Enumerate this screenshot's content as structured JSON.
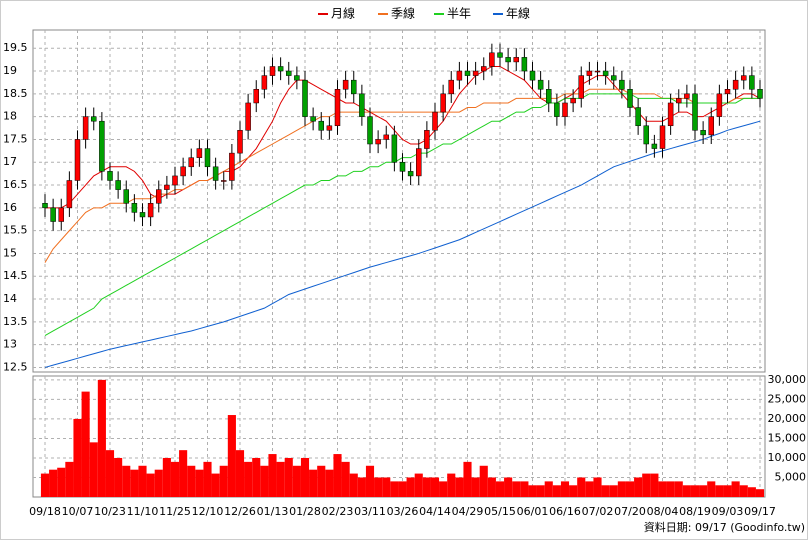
{
  "chart_data": {
    "type": "candlestick",
    "categories": [
      "09/18",
      null,
      null,
      null,
      "10/07",
      null,
      null,
      null,
      "10/23",
      null,
      null,
      null,
      "11/10",
      null,
      null,
      null,
      "11/25",
      null,
      null,
      null,
      "12/10",
      null,
      null,
      null,
      "12/26",
      null,
      null,
      null,
      "01/13",
      null,
      null,
      null,
      "01/28",
      null,
      null,
      null,
      "02/23",
      null,
      null,
      null,
      "03/11",
      null,
      null,
      null,
      "03/26",
      null,
      null,
      null,
      "04/14",
      null,
      null,
      null,
      "04/29",
      null,
      null,
      null,
      "05/15",
      null,
      null,
      null,
      "06/01",
      null,
      null,
      null,
      "06/16",
      null,
      null,
      null,
      "07/02",
      null,
      null,
      null,
      "07/20",
      null,
      null,
      null,
      "08/04",
      null,
      null,
      null,
      "08/19",
      null,
      null,
      null,
      "09/03",
      null,
      null,
      null,
      "09/17"
    ],
    "open": [
      16.1,
      16.0,
      15.7,
      16.0,
      16.6,
      17.5,
      18.0,
      17.9,
      16.8,
      16.6,
      16.4,
      16.1,
      15.9,
      15.8,
      16.1,
      16.4,
      16.5,
      16.7,
      16.9,
      17.1,
      17.3,
      16.9,
      16.6,
      16.6,
      17.2,
      17.7,
      18.3,
      18.6,
      18.9,
      19.1,
      19.0,
      18.9,
      18.8,
      18.0,
      17.9,
      17.7,
      17.8,
      18.6,
      18.8,
      18.5,
      18.0,
      17.4,
      17.5,
      17.6,
      17.0,
      16.8,
      16.7,
      17.3,
      17.7,
      18.1,
      18.5,
      18.8,
      19.0,
      18.9,
      19.0,
      19.1,
      19.4,
      19.3,
      19.2,
      19.3,
      19.0,
      18.8,
      18.6,
      18.3,
      18.0,
      18.3,
      18.4,
      18.9,
      19.0,
      19.0,
      18.9,
      18.8,
      18.6,
      18.2,
      17.8,
      17.4,
      17.3,
      17.8,
      18.3,
      18.4,
      18.5,
      17.7,
      17.6,
      18.0,
      18.5,
      18.6,
      18.8,
      18.9,
      18.6
    ],
    "high": [
      16.3,
      16.2,
      16.2,
      16.8,
      17.7,
      18.2,
      18.2,
      18.1,
      17.0,
      16.8,
      16.6,
      16.3,
      16.1,
      16.3,
      16.6,
      16.7,
      16.9,
      17.1,
      17.3,
      17.5,
      17.5,
      17.1,
      16.8,
      17.4,
      17.9,
      18.5,
      18.8,
      19.1,
      19.3,
      19.3,
      19.2,
      19.1,
      19.0,
      18.2,
      18.1,
      18.0,
      18.8,
      19.0,
      19.0,
      18.7,
      18.2,
      17.7,
      17.8,
      17.8,
      17.2,
      17.0,
      17.5,
      17.9,
      18.3,
      18.7,
      19.0,
      19.2,
      19.2,
      19.2,
      19.3,
      19.6,
      19.6,
      19.5,
      19.5,
      19.5,
      19.2,
      19.0,
      18.8,
      18.5,
      18.5,
      18.6,
      19.1,
      19.2,
      19.2,
      19.2,
      19.1,
      19.0,
      18.8,
      18.4,
      18.0,
      17.6,
      18.0,
      18.5,
      18.6,
      18.7,
      18.7,
      17.9,
      18.2,
      18.7,
      18.8,
      19.0,
      19.1,
      19.1,
      18.8
    ],
    "low": [
      15.8,
      15.5,
      15.5,
      15.8,
      16.4,
      17.3,
      17.7,
      16.6,
      16.4,
      16.2,
      15.9,
      15.7,
      15.6,
      15.6,
      15.9,
      16.2,
      16.3,
      16.5,
      16.7,
      16.9,
      16.7,
      16.4,
      16.4,
      16.4,
      17.0,
      17.5,
      18.1,
      18.4,
      18.7,
      18.8,
      18.7,
      18.6,
      17.8,
      17.7,
      17.5,
      17.5,
      17.6,
      18.4,
      18.3,
      17.8,
      17.2,
      17.2,
      17.3,
      16.8,
      16.6,
      16.5,
      16.5,
      17.1,
      17.5,
      17.9,
      18.3,
      18.6,
      18.7,
      18.7,
      18.8,
      18.9,
      19.1,
      19.0,
      19.0,
      18.8,
      18.6,
      18.4,
      18.1,
      17.8,
      17.8,
      18.1,
      18.2,
      18.7,
      18.8,
      18.7,
      18.6,
      18.4,
      18.0,
      17.6,
      17.2,
      17.1,
      17.1,
      17.6,
      18.1,
      18.2,
      17.5,
      17.4,
      17.4,
      17.8,
      18.3,
      18.4,
      18.6,
      18.4,
      18.2
    ],
    "close": [
      16.0,
      15.7,
      16.0,
      16.6,
      17.5,
      18.0,
      17.9,
      16.8,
      16.6,
      16.4,
      16.1,
      15.9,
      15.8,
      16.1,
      16.4,
      16.5,
      16.7,
      16.9,
      17.1,
      17.3,
      16.9,
      16.6,
      16.6,
      17.2,
      17.7,
      18.3,
      18.6,
      18.9,
      19.1,
      19.0,
      18.9,
      18.8,
      18.0,
      17.9,
      17.7,
      17.8,
      18.6,
      18.8,
      18.5,
      18.0,
      17.4,
      17.5,
      17.6,
      17.0,
      16.8,
      16.7,
      17.3,
      17.7,
      18.1,
      18.5,
      18.8,
      19.0,
      18.9,
      19.0,
      19.1,
      19.4,
      19.3,
      19.2,
      19.3,
      19.0,
      18.8,
      18.6,
      18.3,
      18.0,
      18.3,
      18.4,
      18.9,
      19.0,
      19.0,
      18.9,
      18.8,
      18.6,
      18.2,
      17.8,
      17.4,
      17.3,
      17.8,
      18.3,
      18.4,
      18.5,
      17.7,
      17.6,
      18.0,
      18.5,
      18.6,
      18.8,
      18.9,
      18.6,
      18.4
    ],
    "up_color": "#ff0000",
    "down_color": "#00a000",
    "series": [
      {
        "name": "月線",
        "color": "#e00000",
        "values": [
          16.0,
          16.0,
          16.0,
          16.1,
          16.3,
          16.5,
          16.7,
          16.8,
          16.9,
          16.9,
          16.9,
          16.8,
          16.6,
          16.3,
          16.2,
          16.3,
          16.3,
          16.4,
          16.5,
          16.6,
          16.6,
          16.7,
          16.8,
          16.8,
          16.9,
          17.1,
          17.3,
          17.6,
          17.9,
          18.3,
          18.6,
          18.8,
          18.8,
          18.7,
          18.6,
          18.5,
          18.4,
          18.3,
          18.3,
          18.2,
          18.1,
          18.0,
          17.9,
          17.7,
          17.5,
          17.4,
          17.4,
          17.5,
          17.7,
          17.9,
          18.2,
          18.5,
          18.7,
          18.9,
          19.0,
          19.1,
          19.1,
          19.0,
          18.9,
          18.8,
          18.6,
          18.4,
          18.3,
          18.3,
          18.4,
          18.5,
          18.7,
          18.8,
          18.9,
          18.9,
          18.7,
          18.5,
          18.3,
          18.1,
          17.9,
          17.9,
          17.9,
          18.0,
          18.1,
          18.1,
          18.0,
          18.0,
          18.1,
          18.2,
          18.3,
          18.4,
          18.5,
          18.5,
          18.4
        ]
      },
      {
        "name": "季線",
        "color": "#f07020",
        "values": [
          14.8,
          15.1,
          15.3,
          15.5,
          15.7,
          15.9,
          16.0,
          16.0,
          16.1,
          16.1,
          16.1,
          16.2,
          16.2,
          16.2,
          16.3,
          16.3,
          16.4,
          16.4,
          16.5,
          16.6,
          16.6,
          16.7,
          16.8,
          16.9,
          17.0,
          17.1,
          17.2,
          17.3,
          17.4,
          17.5,
          17.6,
          17.7,
          17.8,
          17.9,
          18.0,
          18.0,
          18.1,
          18.1,
          18.1,
          18.1,
          18.1,
          18.1,
          18.1,
          18.1,
          18.1,
          18.1,
          18.1,
          18.1,
          18.1,
          18.1,
          18.1,
          18.1,
          18.2,
          18.2,
          18.3,
          18.3,
          18.3,
          18.3,
          18.4,
          18.4,
          18.4,
          18.4,
          18.4,
          18.4,
          18.5,
          18.5,
          18.5,
          18.6,
          18.6,
          18.6,
          18.6,
          18.6,
          18.5,
          18.5,
          18.5,
          18.5,
          18.4,
          18.4,
          18.4,
          18.4,
          18.3,
          18.3,
          18.3,
          18.3,
          18.3,
          18.4,
          18.4,
          18.4,
          18.4
        ]
      },
      {
        "name": "半年",
        "color": "#20d020",
        "values": [
          13.2,
          13.3,
          13.4,
          13.5,
          13.6,
          13.7,
          13.8,
          14.0,
          14.1,
          14.2,
          14.3,
          14.4,
          14.5,
          14.6,
          14.7,
          14.8,
          14.9,
          15.0,
          15.1,
          15.2,
          15.3,
          15.4,
          15.5,
          15.6,
          15.7,
          15.8,
          15.9,
          16.0,
          16.1,
          16.2,
          16.3,
          16.4,
          16.5,
          16.5,
          16.6,
          16.6,
          16.7,
          16.7,
          16.8,
          16.8,
          16.9,
          16.9,
          17.0,
          17.0,
          17.1,
          17.1,
          17.2,
          17.2,
          17.3,
          17.4,
          17.4,
          17.5,
          17.6,
          17.7,
          17.8,
          17.9,
          17.9,
          18.0,
          18.1,
          18.1,
          18.2,
          18.2,
          18.3,
          18.3,
          18.4,
          18.4,
          18.4,
          18.5,
          18.5,
          18.5,
          18.5,
          18.5,
          18.5,
          18.4,
          18.4,
          18.4,
          18.4,
          18.4,
          18.3,
          18.3,
          18.3,
          18.3,
          18.3,
          18.3,
          18.3,
          18.3,
          18.4,
          18.4,
          18.4
        ]
      },
      {
        "name": "年線",
        "color": "#1060d0",
        "values": [
          12.5,
          12.55,
          12.6,
          12.65,
          12.7,
          12.75,
          12.8,
          12.85,
          12.9,
          12.94,
          12.98,
          13.02,
          13.06,
          13.1,
          13.14,
          13.18,
          13.22,
          13.26,
          13.3,
          13.35,
          13.4,
          13.45,
          13.5,
          13.56,
          13.62,
          13.68,
          13.74,
          13.8,
          13.9,
          14.0,
          14.1,
          14.16,
          14.22,
          14.28,
          14.34,
          14.4,
          14.46,
          14.52,
          14.58,
          14.64,
          14.7,
          14.75,
          14.8,
          14.85,
          14.9,
          14.95,
          15.0,
          15.06,
          15.12,
          15.18,
          15.24,
          15.3,
          15.38,
          15.46,
          15.54,
          15.62,
          15.7,
          15.78,
          15.86,
          15.94,
          16.02,
          16.1,
          16.18,
          16.26,
          16.34,
          16.42,
          16.5,
          16.6,
          16.7,
          16.8,
          16.9,
          16.96,
          17.02,
          17.08,
          17.14,
          17.2,
          17.25,
          17.3,
          17.35,
          17.4,
          17.45,
          17.5,
          17.57,
          17.63,
          17.7,
          17.75,
          17.8,
          17.85,
          17.9
        ]
      }
    ],
    "volume": {
      "type": "bar",
      "axis": "y2",
      "color": "#ff0000",
      "values": [
        6000,
        7000,
        7500,
        9000,
        20000,
        27000,
        14000,
        30000,
        12000,
        10000,
        8000,
        7000,
        8000,
        6000,
        7000,
        10000,
        9000,
        12000,
        8000,
        7000,
        9000,
        6000,
        8000,
        21000,
        12000,
        9000,
        10000,
        8000,
        11000,
        9000,
        10000,
        8000,
        10000,
        7000,
        8000,
        7000,
        11000,
        9000,
        6000,
        5000,
        8000,
        5000,
        5000,
        4000,
        4000,
        5000,
        6000,
        5000,
        5000,
        4000,
        6000,
        5000,
        9000,
        5000,
        8000,
        5000,
        4000,
        5000,
        4000,
        4000,
        3000,
        3000,
        4000,
        3000,
        4000,
        3000,
        5000,
        4000,
        5000,
        3000,
        3000,
        4000,
        4000,
        5000,
        6000,
        6000,
        4000,
        4000,
        4000,
        3000,
        3000,
        3000,
        4000,
        3000,
        3000,
        4000,
        3000,
        2500,
        2000
      ]
    },
    "ylim": [
      12.4,
      19.9
    ],
    "yticks": [
      12.5,
      13,
      13.5,
      14,
      14.5,
      15,
      15.5,
      16,
      16.5,
      17,
      17.5,
      18,
      18.5,
      19,
      19.5
    ],
    "y2lim": [
      0,
      31000
    ],
    "y2ticks": [
      {
        "value": 5000,
        "label": "5,000"
      },
      {
        "value": 10000,
        "label": "10,000"
      },
      {
        "value": 15000,
        "label": "15,000"
      },
      {
        "value": 20000,
        "label": "20,000"
      },
      {
        "value": 25000,
        "label": "25,000"
      },
      {
        "value": 30000,
        "label": "30,000"
      }
    ],
    "grid": true,
    "footer": "資料日期: 09/17  (Goodinfo.tw)"
  }
}
